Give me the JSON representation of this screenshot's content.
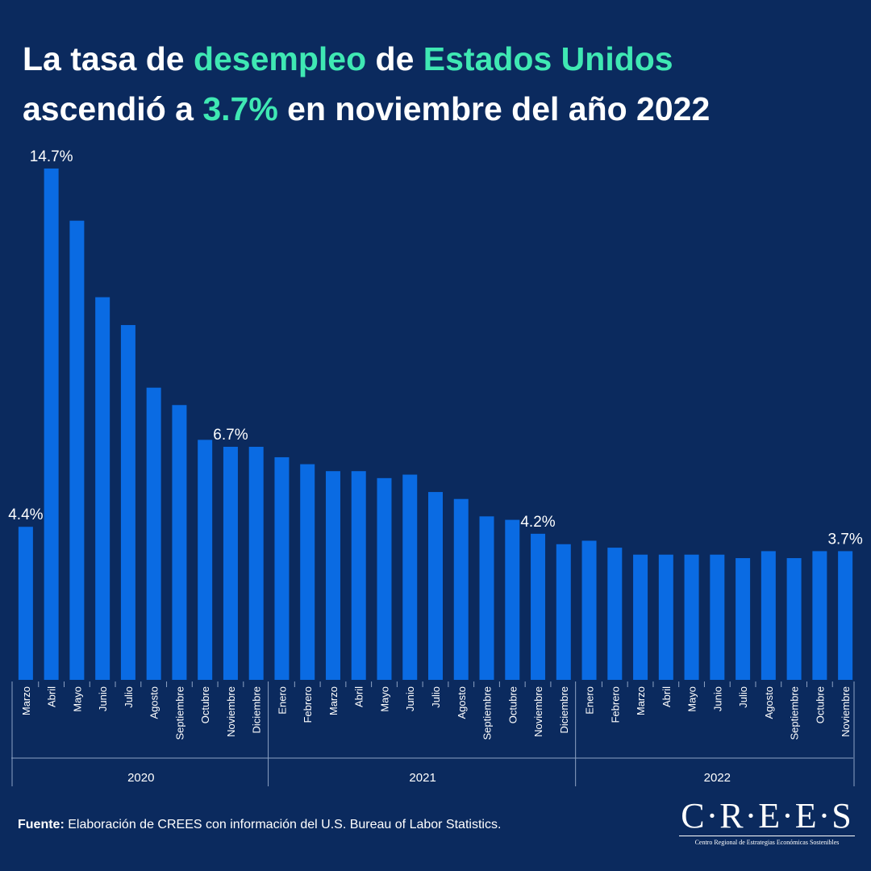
{
  "chart_data": {
    "type": "bar",
    "title": [
      [
        "La tasa de ",
        "desempleo",
        " de ",
        "Estados Unidos"
      ],
      [
        "ascendió a ",
        "3.7%",
        " en noviembre del año 2022"
      ]
    ],
    "color": "#0a6be3",
    "ylim": [
      0,
      15
    ],
    "groups": [
      {
        "label": "2020",
        "categories": [
          "Marzo",
          "Abril",
          "Mayo",
          "Junio",
          "Julio",
          "Agosto",
          "Septiembre",
          "Octubre",
          "Noviembre",
          "Diciembre"
        ],
        "values": [
          4.4,
          14.7,
          13.2,
          11.0,
          10.2,
          8.4,
          7.9,
          6.9,
          6.7,
          6.7
        ],
        "value_labels": [
          "4.4%",
          "14.7%",
          null,
          null,
          null,
          null,
          null,
          null,
          "6.7%",
          null
        ]
      },
      {
        "label": "2021",
        "categories": [
          "Enero",
          "Febrero",
          "Marzo",
          "Abril",
          "Mayo",
          "Junio",
          "Julio",
          "Agosto",
          "Septiembre",
          "Octubre",
          "Noviembre",
          "Diciembre"
        ],
        "values": [
          6.4,
          6.2,
          6.0,
          6.0,
          5.8,
          5.9,
          5.4,
          5.2,
          4.7,
          4.6,
          4.2,
          3.9
        ],
        "value_labels": [
          null,
          null,
          null,
          null,
          null,
          null,
          null,
          null,
          null,
          null,
          "4.2%",
          null
        ]
      },
      {
        "label": "2022",
        "categories": [
          "Enero",
          "Febrero",
          "Marzo",
          "Abril",
          "Mayo",
          "Junio",
          "Julio",
          "Agosto",
          "Septiembre",
          "Octubre",
          "Noviembre"
        ],
        "values": [
          4.0,
          3.8,
          3.6,
          3.6,
          3.6,
          3.6,
          3.5,
          3.7,
          3.5,
          3.7,
          3.7
        ],
        "value_labels": [
          null,
          null,
          null,
          null,
          null,
          null,
          null,
          null,
          null,
          null,
          "3.7%"
        ]
      }
    ]
  },
  "source": {
    "label": "Fuente:",
    "text": " Elaboración de CREES con información del U.S. Bureau of Labor Statistics."
  },
  "logo": {
    "name": "C·R·E·E·S",
    "subtitle": "Centro Regional de Estrategias Económicas Sostenibles"
  }
}
